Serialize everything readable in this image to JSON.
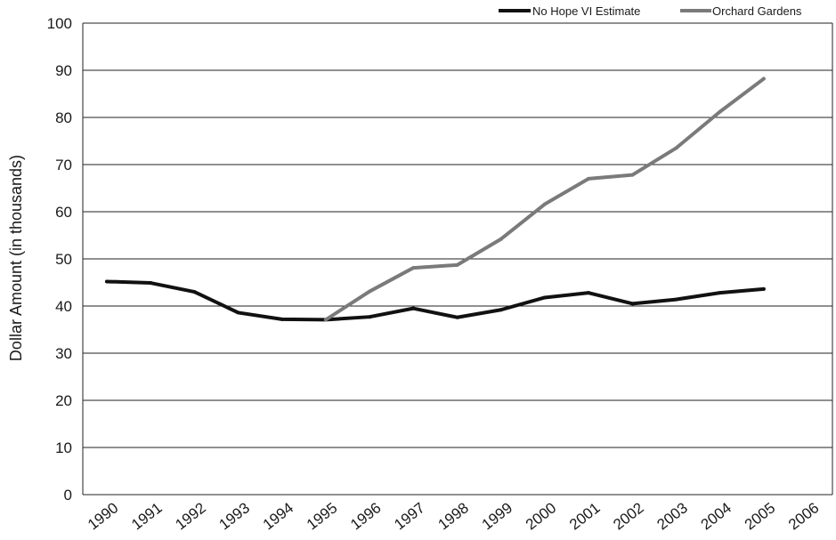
{
  "chart_data": {
    "type": "line",
    "title": "",
    "xlabel": "",
    "ylabel": "Dollar Amount (in thousands)",
    "ylim": [
      0,
      100
    ],
    "yticks": [
      0,
      10,
      20,
      30,
      40,
      50,
      60,
      70,
      80,
      90,
      100
    ],
    "categories": [
      "1990",
      "1991",
      "1992",
      "1993",
      "1994",
      "1995",
      "1996",
      "1997",
      "1998",
      "1999",
      "2000",
      "2001",
      "2002",
      "2003",
      "2004",
      "2005",
      "2006"
    ],
    "grid": "horizontal",
    "legend_position": "top-right",
    "series": [
      {
        "name": "No Hope VI Estimate",
        "color": "#111111",
        "values": [
          45.2,
          44.9,
          43.0,
          38.6,
          37.2,
          37.1,
          37.7,
          39.5,
          37.6,
          39.2,
          41.8,
          42.8,
          40.5,
          41.4,
          42.8,
          43.6,
          null
        ]
      },
      {
        "name": "Orchard Gardens",
        "color": "#7a7a7a",
        "values": [
          null,
          null,
          null,
          null,
          null,
          37.1,
          43.1,
          48.1,
          48.7,
          54.2,
          61.6,
          67.0,
          67.8,
          73.5,
          81.2,
          88.2,
          null
        ]
      }
    ]
  }
}
